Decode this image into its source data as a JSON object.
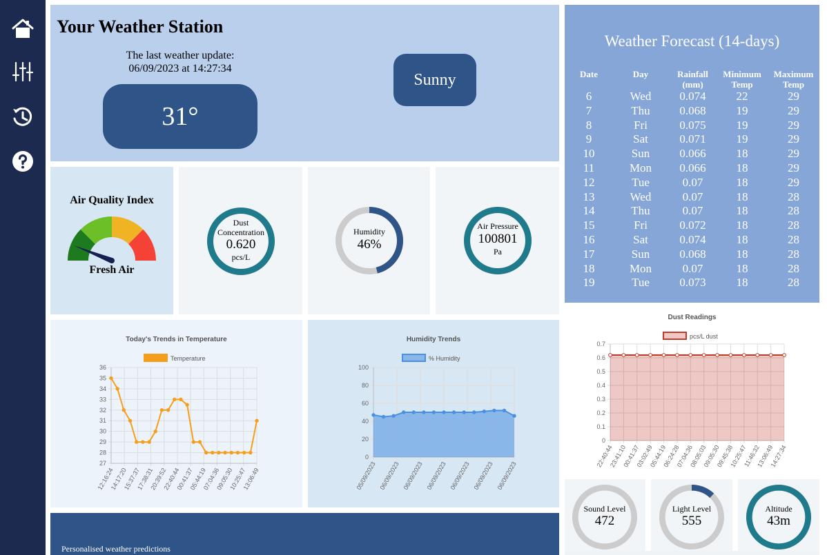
{
  "sidebar": {
    "icons": [
      "home-icon",
      "sliders-icon",
      "history-icon",
      "help-icon"
    ]
  },
  "header": {
    "title": "Your Weather Station",
    "update_line1": "The last weather update:",
    "update_line2": "06/09/2023 at 14:27:34",
    "temperature": "31°",
    "condition": "Sunny"
  },
  "forecast": {
    "title": "Weather Forecast (14-days)",
    "headers": [
      "Date",
      "Day",
      "Rainfall (mm)",
      "Minimum Temp",
      "Maximum Temp"
    ],
    "rows": [
      [
        "6",
        "Wed",
        "0.074",
        "22",
        "29"
      ],
      [
        "7",
        "Thu",
        "0.068",
        "19",
        "29"
      ],
      [
        "8",
        "Fri",
        "0.075",
        "19",
        "29"
      ],
      [
        "9",
        "Sat",
        "0.071",
        "19",
        "29"
      ],
      [
        "10",
        "Sun",
        "0.066",
        "18",
        "29"
      ],
      [
        "11",
        "Mon",
        "0.066",
        "18",
        "29"
      ],
      [
        "12",
        "Tue",
        "0.07",
        "18",
        "29"
      ],
      [
        "13",
        "Wed",
        "0.07",
        "18",
        "28"
      ],
      [
        "14",
        "Thu",
        "0.07",
        "18",
        "28"
      ],
      [
        "15",
        "Fri",
        "0.072",
        "18",
        "28"
      ],
      [
        "16",
        "Sat",
        "0.074",
        "18",
        "28"
      ],
      [
        "17",
        "Sun",
        "0.068",
        "18",
        "28"
      ],
      [
        "18",
        "Mon",
        "0.07",
        "18",
        "28"
      ],
      [
        "19",
        "Tue",
        "0.073",
        "18",
        "28"
      ]
    ]
  },
  "aqi": {
    "title": "Air Quality Index",
    "label": "Fresh Air",
    "level_fraction": 0.12
  },
  "dust": {
    "label1": "Dust",
    "label2": "Concentration",
    "value": "0.620",
    "unit": "pcs/L",
    "fill_fraction": 1.0
  },
  "humidity": {
    "label": "Humidity",
    "value": "46%",
    "fill_fraction": 0.46
  },
  "pressure": {
    "label": "Air Pressure",
    "value": "100801",
    "unit": "Pa",
    "fill_fraction": 1.0
  },
  "sound": {
    "label": "Sound Level",
    "value": "472",
    "fill_fraction": 0.0
  },
  "light": {
    "label": "Light Level",
    "value": "555",
    "fill_fraction": 0.12
  },
  "altitude": {
    "label": "Altitude",
    "value": "43m",
    "fill_fraction": 1.0
  },
  "colors": {
    "sidebar": "#1b2a4e",
    "accent_dark": "#2f5487",
    "header_bg": "#b9cfec",
    "forecast_bg": "#85a6d6",
    "ring_teal": "#1f7a8c",
    "ring_navy": "#2f5487",
    "ring_track": "#cccccc",
    "temp_line": "#f59e1b",
    "humidity_line": "#4a90e2",
    "dust_line": "#c0392b",
    "aqi_colors": [
      "#1e7a1e",
      "#6cbf26",
      "#f0b323",
      "#f44336"
    ]
  },
  "bottom": {
    "label": "Personalised weather predictions"
  },
  "chart_data": [
    {
      "type": "line",
      "title": "Today's Trends in Temperature",
      "series": [
        {
          "name": "Temperature",
          "values": [
            35,
            34,
            32,
            31,
            29,
            29,
            29,
            30,
            32,
            32,
            33,
            33,
            32.5,
            29,
            29,
            28,
            28,
            28,
            28,
            28,
            28,
            28,
            28,
            31
          ]
        }
      ],
      "x_tick_labels": [
        "12:16:24",
        "14:17:20",
        "15:37:37",
        "17:38:31",
        "20:39:52",
        "22:40:44",
        "00:41:37",
        "05:44:19",
        "07:04:36",
        "09:05:30",
        "10:25:47",
        "13:06:49"
      ],
      "ylim": [
        27,
        36
      ],
      "yticks": [
        27,
        28,
        29,
        30,
        31,
        32,
        33,
        34,
        35,
        36
      ],
      "legend": "top",
      "grid": true
    },
    {
      "type": "area",
      "title": "Humidity Trends",
      "series": [
        {
          "name": "% Humidity",
          "values": [
            47,
            45,
            46,
            50,
            50,
            50,
            50,
            50,
            50,
            50,
            50,
            51,
            52,
            52,
            46
          ]
        }
      ],
      "x_tick_labels": [
        "05/09/2023",
        "06/09/2023",
        "06/09/2023",
        "06/09/2023",
        "06/09/2023",
        "06/09/2023",
        "06/09/2023"
      ],
      "ylim": [
        0,
        100
      ],
      "yticks": [
        0,
        20,
        40,
        60,
        80,
        100
      ],
      "legend": "top",
      "grid": true
    },
    {
      "type": "area",
      "title": "Dust Readings",
      "series": [
        {
          "name": "pcs/L dust",
          "values": [
            0.62,
            0.62,
            0.62,
            0.62,
            0.62,
            0.62,
            0.62,
            0.62,
            0.62,
            0.62,
            0.62,
            0.62,
            0.62,
            0.62
          ]
        }
      ],
      "x_tick_labels": [
        "22:40:44",
        "23:41:10",
        "00:41:37",
        "03:02:49",
        "05:44:19",
        "06:24:28",
        "07:04:36",
        "08:05:03",
        "09:05:30",
        "09:45:38",
        "10:25:47",
        "11:46:32",
        "13:06:49",
        "14:27:34"
      ],
      "ylim": [
        0,
        0.7
      ],
      "yticks": [
        0,
        0.1,
        0.2,
        0.3,
        0.4,
        0.5,
        0.6,
        0.7
      ],
      "legend": "top",
      "grid": true
    }
  ]
}
